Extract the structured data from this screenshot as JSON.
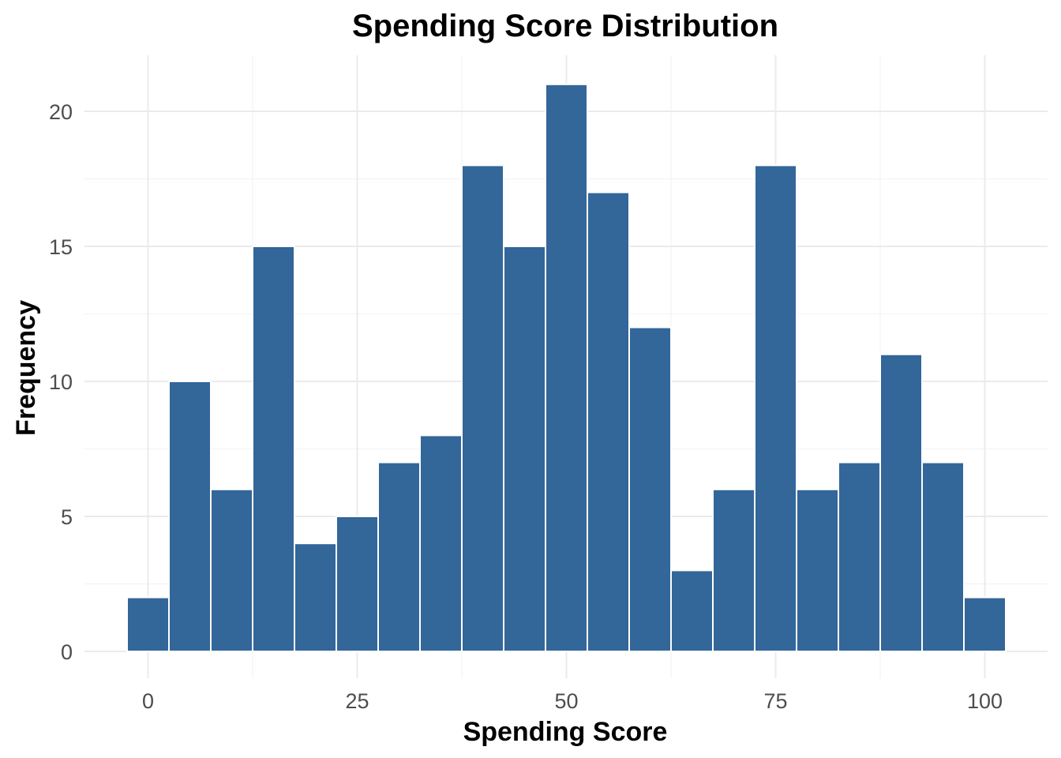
{
  "chart_data": {
    "type": "bar",
    "title": "Spending Score Distribution",
    "xlabel": "Spending Score",
    "ylabel": "Frequency",
    "bin_width": 5,
    "bins": [
      {
        "x": 0,
        "count": 2
      },
      {
        "x": 5,
        "count": 10
      },
      {
        "x": 10,
        "count": 6
      },
      {
        "x": 15,
        "count": 15
      },
      {
        "x": 20,
        "count": 4
      },
      {
        "x": 25,
        "count": 5
      },
      {
        "x": 30,
        "count": 7
      },
      {
        "x": 35,
        "count": 8
      },
      {
        "x": 40,
        "count": 18
      },
      {
        "x": 45,
        "count": 15
      },
      {
        "x": 50,
        "count": 21
      },
      {
        "x": 55,
        "count": 17
      },
      {
        "x": 60,
        "count": 12
      },
      {
        "x": 65,
        "count": 3
      },
      {
        "x": 70,
        "count": 6
      },
      {
        "x": 75,
        "count": 18
      },
      {
        "x": 80,
        "count": 6
      },
      {
        "x": 85,
        "count": 7
      },
      {
        "x": 90,
        "count": 11
      },
      {
        "x": 95,
        "count": 7
      },
      {
        "x": 100,
        "count": 2
      }
    ],
    "x_ticks": [
      0,
      25,
      50,
      75,
      100
    ],
    "y_ticks": [
      0,
      5,
      10,
      15,
      20
    ],
    "xlim": [
      -5,
      105
    ],
    "ylim": [
      0,
      22
    ],
    "bar_color": "#336699",
    "grid": true,
    "legend": "none"
  }
}
